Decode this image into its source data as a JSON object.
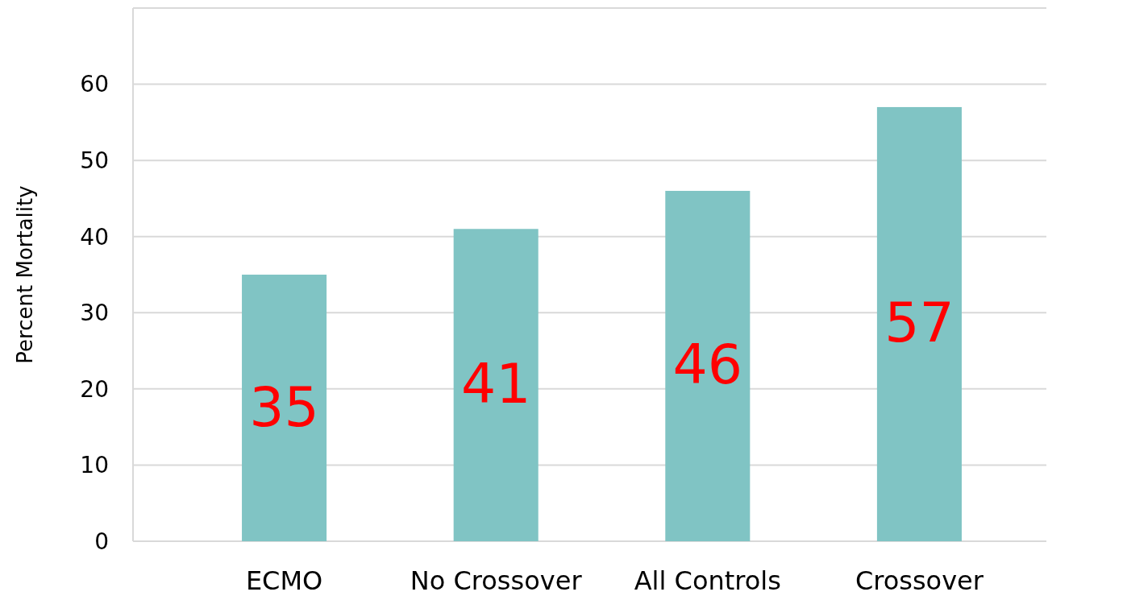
{
  "chart_data": {
    "type": "bar",
    "ylabel": "Percent Mortality",
    "categories": [
      "ECMO",
      "No Crossover",
      "All Controls",
      "Crossover"
    ],
    "values": [
      35,
      41,
      46,
      57
    ],
    "color": "#80c4c4",
    "ylim": [
      0,
      70
    ],
    "yticks": [
      0,
      10,
      20,
      30,
      40,
      50,
      60,
      {
        "value": 70,
        "label": null
      }
    ],
    "grid": "y",
    "data_labels": true
  }
}
